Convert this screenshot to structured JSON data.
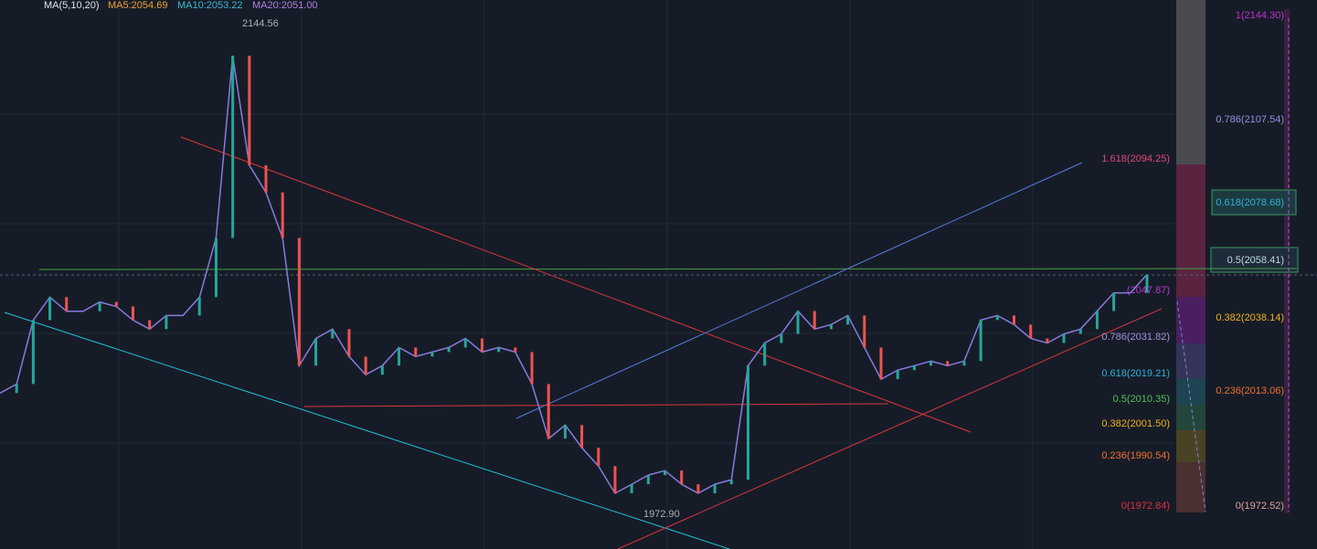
{
  "header": {
    "indicator": "MA(5,10,20)",
    "ma5": "MA5:2054.69",
    "ma10": "MA10:2053.22",
    "ma20": "MA20:2051.00"
  },
  "annotations": {
    "high": "2144.56",
    "low": "1972.90"
  },
  "fib_left": [
    "1.618(2094.25)",
    "(2047.87)",
    "0.786(2031.82)",
    "0.618(2019.21)",
    "0.5(2010.35)",
    "0.382(2001.50)",
    "0.236(1990.54)",
    "0(1972.84)"
  ],
  "fib_right": [
    "1(2144.30)",
    "0.786(2107.54)",
    "0.618(2078.68)",
    "0.5(2058.41)",
    "0.382(2038.14)",
    "0.236(2013.06)",
    "0(1972.52)"
  ],
  "price": {
    "ylim": [
      1958,
      2152
    ],
    "values": [
      2013.1,
      2016.3,
      2038.9,
      2047,
      2042,
      2042,
      2045.3,
      2043.7,
      2038.9,
      2035.7,
      2040.5,
      2040.5,
      2047,
      2067.9,
      2132.3,
      2093.6,
      2084,
      2067.9,
      2022.8,
      2032.4,
      2035.7,
      2026,
      2019.6,
      2022.8,
      2029.2,
      2026,
      2027.6,
      2029.2,
      2032.4,
      2027.6,
      2029.2,
      2027.6,
      2016.3,
      1997,
      2001.8,
      1993.8,
      1987.3,
      1977.7,
      1980.9,
      1984.1,
      1985.7,
      1980.9,
      1977.7,
      1980.9,
      1982.5,
      2022.8,
      2030.8,
      2034,
      2042.1,
      2035.7,
      2037.3,
      2040.5,
      2029.2,
      2018,
      2021.2,
      2022.8,
      2024.4,
      2022.8,
      2024.4,
      2038.9,
      2040.5,
      2037.3,
      2032.4,
      2030.8,
      2034,
      2035.7,
      2042.1,
      2048.5,
      2048.5,
      2055
    ]
  }
}
